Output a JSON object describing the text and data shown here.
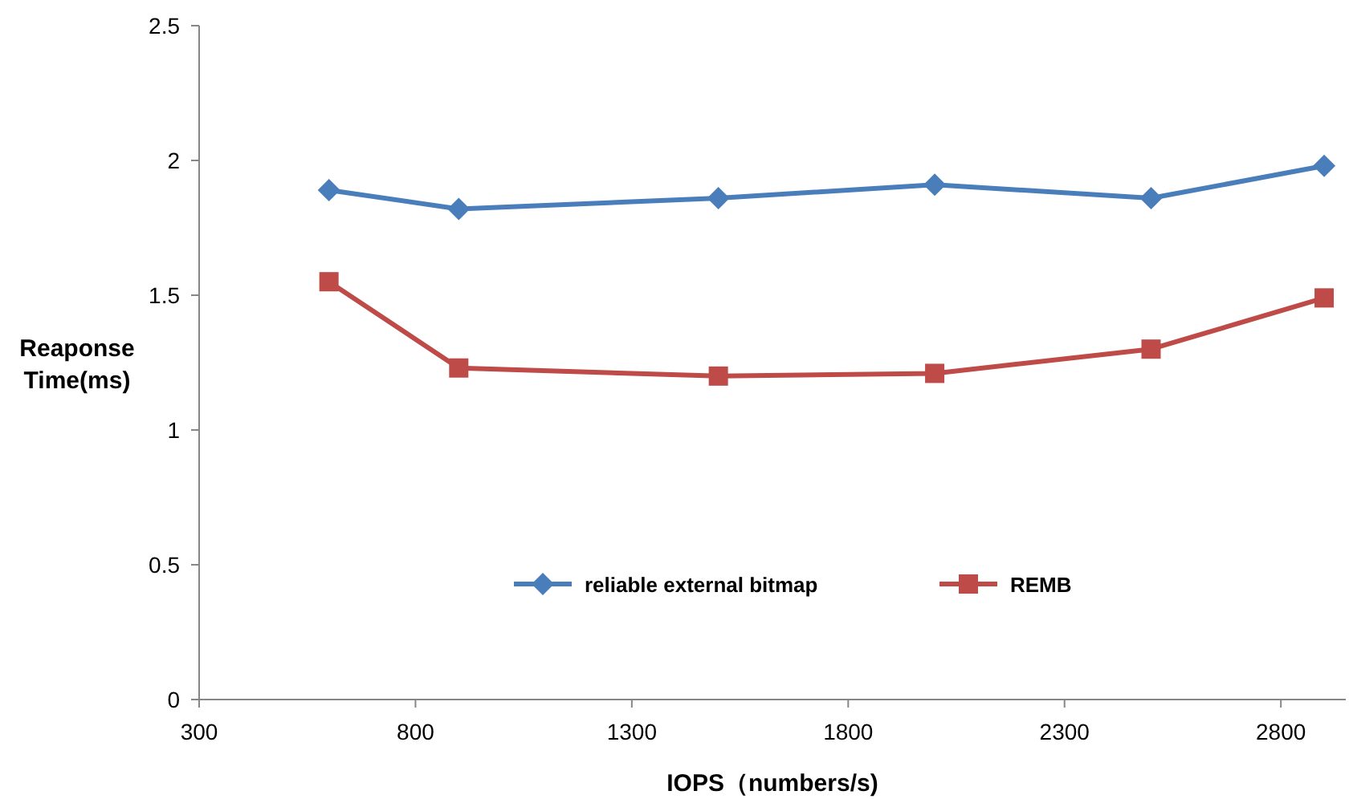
{
  "chart_data": {
    "type": "line",
    "xlabel": "IOPS（numbers/s)",
    "ylabel": "Reaponse Time(ms)",
    "x": [
      600,
      900,
      1500,
      2000,
      2500,
      2900
    ],
    "series": [
      {
        "name": "reliable external bitmap",
        "color": "#4a7ebb",
        "marker": "diamond",
        "values": [
          1.89,
          1.82,
          1.86,
          1.91,
          1.86,
          1.98
        ]
      },
      {
        "name": "REMB",
        "color": "#be4b48",
        "marker": "square",
        "values": [
          1.55,
          1.23,
          1.2,
          1.21,
          1.3,
          1.49
        ]
      }
    ],
    "xlim": [
      300,
      2950
    ],
    "xticks": [
      300,
      800,
      1300,
      1800,
      2300,
      2800
    ],
    "ylim": [
      0,
      2.5
    ],
    "yticks": [
      0,
      0.5,
      1,
      1.5,
      2,
      2.5
    ],
    "grid": false,
    "legend": "bottom"
  }
}
